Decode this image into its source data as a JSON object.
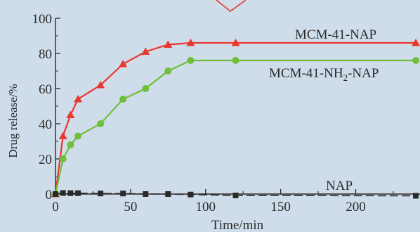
{
  "chart_data": {
    "type": "line",
    "xlabel": "Time/min",
    "ylabel": "Drug release/%",
    "xlim": [
      0,
      240
    ],
    "ylim": [
      0,
      100
    ],
    "x_ticks": [
      0,
      50,
      100,
      150,
      200
    ],
    "y_ticks": [
      0,
      20,
      40,
      60,
      80,
      100
    ],
    "grid": false,
    "series": [
      {
        "name": "MCM-41-NAP",
        "label_parts": [
          "MCM-41-NAP"
        ],
        "color": "#e8382e",
        "marker": "triangle",
        "x": [
          0,
          5,
          10,
          15,
          30,
          45,
          60,
          75,
          90,
          120,
          240
        ],
        "y": [
          0,
          33,
          45,
          54,
          62,
          74,
          81,
          85,
          86,
          86,
          86
        ]
      },
      {
        "name": "MCM-41-NH2-NAP",
        "label_parts": [
          "MCM-41-NH",
          "2",
          "-NAP"
        ],
        "color": "#6fbf3a",
        "marker": "circle",
        "x": [
          0,
          5,
          10,
          15,
          30,
          45,
          60,
          75,
          90,
          120,
          240
        ],
        "y": [
          0,
          20,
          28,
          33,
          40,
          54,
          60,
          70,
          76,
          76,
          76
        ]
      },
      {
        "name": "NAP",
        "label_parts": [
          "NAP"
        ],
        "color": "#2a2a2a",
        "marker": "square",
        "x": [
          0,
          5,
          10,
          15,
          30,
          45,
          60,
          75,
          90,
          120,
          240
        ],
        "y": [
          0,
          0.6,
          0.5,
          0.5,
          0.3,
          0.3,
          0,
          0,
          -0.3,
          -0.8,
          -1
        ]
      }
    ]
  }
}
